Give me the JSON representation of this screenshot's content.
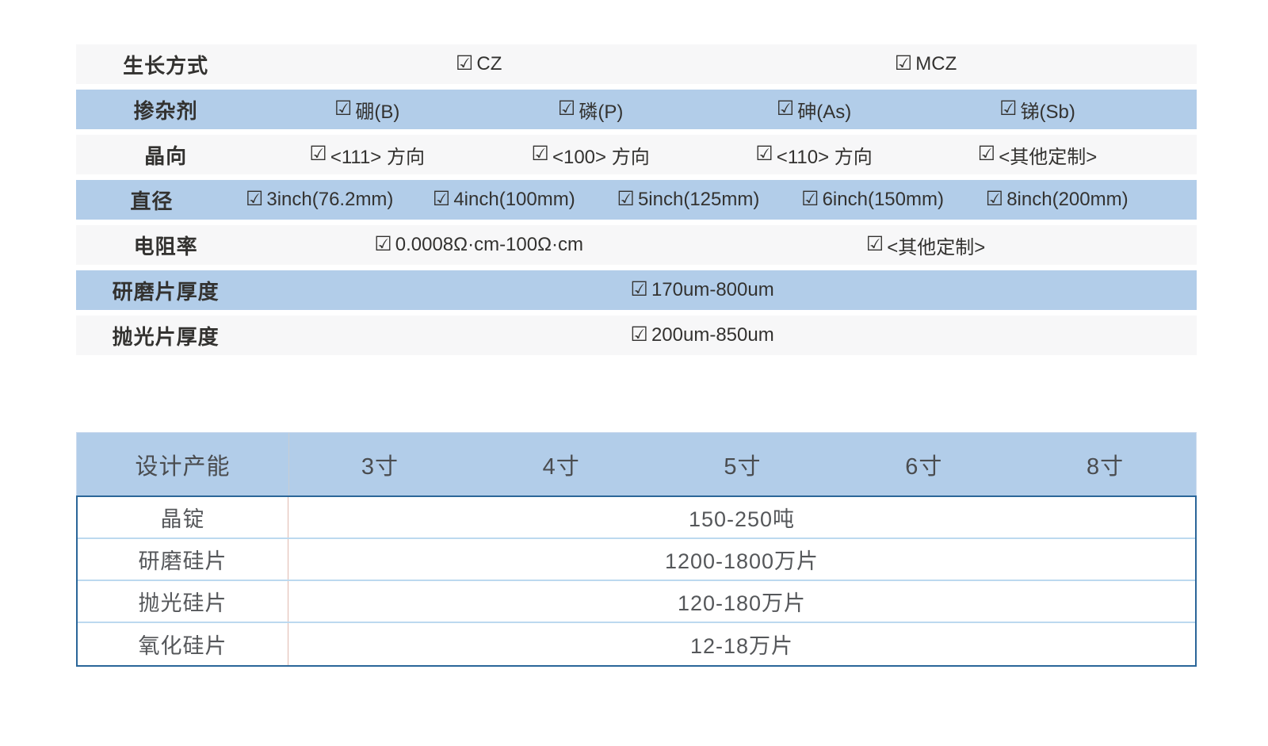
{
  "icons": {
    "checkbox": "☑"
  },
  "colors": {
    "row_blue": "#b2cde9",
    "row_gray": "#f7f7f8",
    "capacity_border": "#2b6699",
    "capacity_row_divider": "#bcd9ef",
    "capacity_col_divider": "#e0bab0",
    "header_col_divider": "#c6cdd4",
    "spec_text": "#333230",
    "capacity_text": "#55575a"
  },
  "spec_table": {
    "rows": [
      {
        "label": "生长方式",
        "bg": "gray",
        "items": [
          "CZ",
          "MCZ"
        ]
      },
      {
        "label": "掺杂剂",
        "bg": "blue",
        "items": [
          "硼(B)",
          "磷(P)",
          "砷(As)",
          "锑(Sb)"
        ]
      },
      {
        "label": "晶向",
        "bg": "gray",
        "items": [
          "<111> 方向",
          "<100> 方向",
          "<110> 方向",
          "<其他定制>"
        ]
      },
      {
        "label": "直径",
        "bg": "blue",
        "items": [
          "3inch(76.2mm)",
          "4inch(100mm)",
          "5inch(125mm)",
          "6inch(150mm)",
          "8inch(200mm)"
        ]
      },
      {
        "label": "电阻率",
        "bg": "gray",
        "items": [
          "0.0008Ω·cm-100Ω·cm",
          "<其他定制>"
        ]
      },
      {
        "label": "研磨片厚度",
        "bg": "blue",
        "items": [
          "170um-800um"
        ]
      },
      {
        "label": "抛光片厚度",
        "bg": "gray",
        "items": [
          "200um-850um"
        ]
      }
    ]
  },
  "capacity_table": {
    "header": [
      "设计产能",
      "3寸",
      "4寸",
      "5寸",
      "6寸",
      "8寸"
    ],
    "rows": [
      {
        "label": "晶锭",
        "value": "150-250吨"
      },
      {
        "label": "研磨硅片",
        "value": "1200-1800万片"
      },
      {
        "label": "抛光硅片",
        "value": "120-180万片"
      },
      {
        "label": "氧化硅片",
        "value": "12-18万片"
      }
    ]
  }
}
